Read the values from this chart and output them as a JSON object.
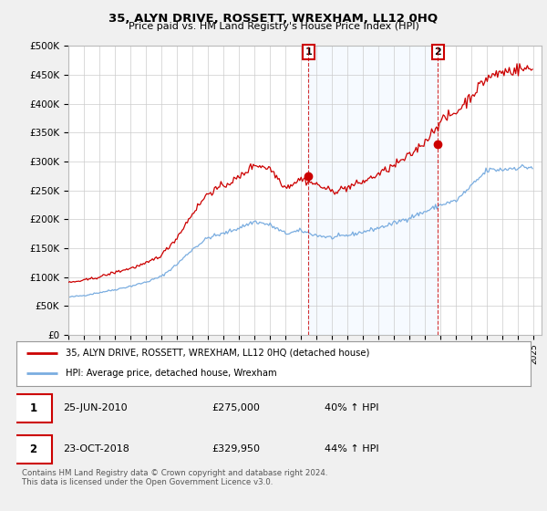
{
  "title": "35, ALYN DRIVE, ROSSETT, WREXHAM, LL12 0HQ",
  "subtitle": "Price paid vs. HM Land Registry's House Price Index (HPI)",
  "ylabel_ticks": [
    "£0",
    "£50K",
    "£100K",
    "£150K",
    "£200K",
    "£250K",
    "£300K",
    "£350K",
    "£400K",
    "£450K",
    "£500K"
  ],
  "ytick_values": [
    0,
    50000,
    100000,
    150000,
    200000,
    250000,
    300000,
    350000,
    400000,
    450000,
    500000
  ],
  "xlim_start": 1995.0,
  "xlim_end": 2025.5,
  "ylim": [
    0,
    500000
  ],
  "background_color": "#f0f0f0",
  "plot_bg_color": "#ffffff",
  "red_line_color": "#cc0000",
  "blue_line_color": "#7aade0",
  "shade_color": "#ddeeff",
  "vline_color": "#cc0000",
  "marker1_date": 2010.48,
  "marker1_value": 275000,
  "marker2_date": 2018.81,
  "marker2_value": 329950,
  "legend_label_red": "35, ALYN DRIVE, ROSSETT, WREXHAM, LL12 0HQ (detached house)",
  "legend_label_blue": "HPI: Average price, detached house, Wrexham",
  "table_row1": [
    "1",
    "25-JUN-2010",
    "£275,000",
    "40% ↑ HPI"
  ],
  "table_row2": [
    "2",
    "23-OCT-2018",
    "£329,950",
    "44% ↑ HPI"
  ],
  "footer": "Contains HM Land Registry data © Crown copyright and database right 2024.\nThis data is licensed under the Open Government Licence v3.0.",
  "xtick_years": [
    1995,
    1996,
    1997,
    1998,
    1999,
    2000,
    2001,
    2002,
    2003,
    2004,
    2005,
    2006,
    2007,
    2008,
    2009,
    2010,
    2011,
    2012,
    2013,
    2014,
    2015,
    2016,
    2017,
    2018,
    2019,
    2020,
    2021,
    2022,
    2023,
    2024,
    2025
  ],
  "hpi_trajectory": {
    "1995": 65000,
    "1996": 68000,
    "1997": 73000,
    "1998": 78000,
    "1999": 84000,
    "2000": 91000,
    "2001": 101000,
    "2002": 122000,
    "2003": 148000,
    "2004": 168000,
    "2005": 175000,
    "2006": 185000,
    "2007": 196000,
    "2008": 190000,
    "2009": 175000,
    "2010": 180000,
    "2011": 172000,
    "2012": 168000,
    "2013": 172000,
    "2014": 178000,
    "2015": 185000,
    "2016": 193000,
    "2017": 203000,
    "2018": 213000,
    "2019": 225000,
    "2020": 232000,
    "2021": 258000,
    "2022": 285000,
    "2023": 286000,
    "2024": 290000
  },
  "red_trajectory": {
    "1995": 90000,
    "1996": 94000,
    "1997": 100000,
    "1998": 108000,
    "1999": 115000,
    "2000": 123000,
    "2001": 138000,
    "2002": 168000,
    "2003": 210000,
    "2004": 245000,
    "2005": 258000,
    "2006": 272000,
    "2007": 295000,
    "2008": 288000,
    "2009": 255000,
    "2010": 270000,
    "2011": 260000,
    "2012": 248000,
    "2013": 255000,
    "2014": 265000,
    "2015": 278000,
    "2016": 293000,
    "2017": 310000,
    "2018": 335000,
    "2019": 370000,
    "2020": 385000,
    "2021": 415000,
    "2022": 445000,
    "2023": 455000,
    "2024": 460000
  }
}
